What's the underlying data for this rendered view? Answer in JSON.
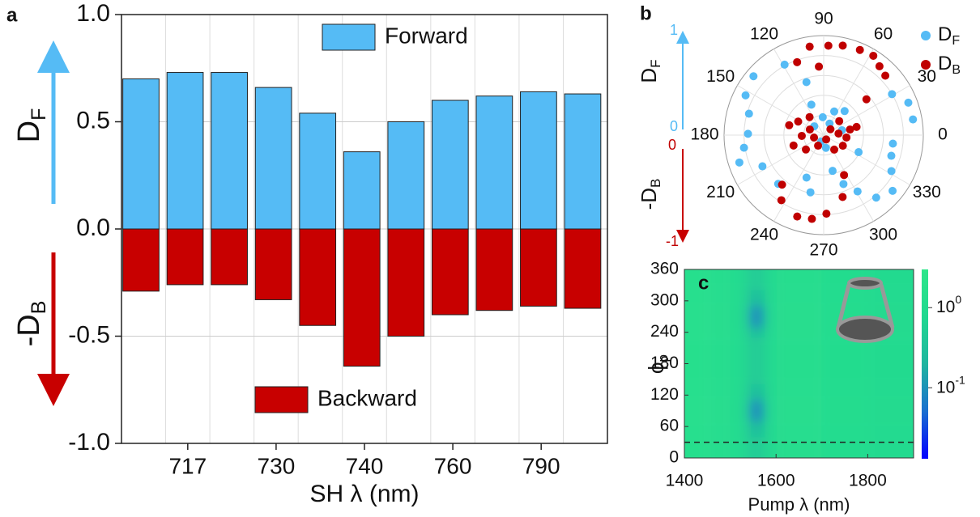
{
  "chart_data": [
    {
      "type": "bar",
      "panel": "a",
      "categories": [
        null,
        "717",
        null,
        "730",
        null,
        "740",
        null,
        "760",
        null,
        "790",
        null
      ],
      "series": [
        {
          "name": "Forward",
          "color": "#55bbf5",
          "values": [
            0.7,
            0.73,
            0.73,
            0.66,
            0.54,
            0.36,
            0.5,
            0.6,
            0.62,
            0.64,
            0.63
          ]
        },
        {
          "name": "Backward",
          "color": "#c80000",
          "values": [
            -0.29,
            -0.26,
            -0.26,
            -0.33,
            -0.45,
            -0.64,
            -0.5,
            -0.4,
            -0.38,
            -0.36,
            -0.37
          ]
        }
      ],
      "ylim": [
        -1,
        1
      ],
      "yticks": [
        {
          "value": 1,
          "label": "1.0"
        },
        {
          "value": 0.5,
          "label": "0.5"
        },
        {
          "value": 0,
          "label": "0.0"
        },
        {
          "value": -0.5,
          "label": "-0.5"
        },
        {
          "value": -1,
          "label": "-1.0"
        }
      ],
      "y_label_top": {
        "text": "D",
        "sub": "F"
      },
      "y_label_bottom": {
        "text": "-D",
        "sub": "B"
      },
      "x_label": "SH λ (nm)",
      "grid": true,
      "legend": "split"
    },
    {
      "type": "polar",
      "panel": "b",
      "series": [
        {
          "name": {
            "text": "D",
            "sub": "F"
          },
          "color": "#55bbf5",
          "x": [
            119,
            140,
            153,
            164,
            179,
            189,
            198,
            207,
            227,
            248,
            257,
            284,
            292,
            301,
            310,
            321,
            332,
            343,
            353,
            10,
            21,
            31,
            108,
            112,
            93,
            66,
            49,
            63,
            137,
            249,
            280,
            334,
            15
          ],
          "values": [
            0.81,
            0.92,
            0.88,
            0.78,
            0.76,
            0.81,
            0.89,
            0.69,
            0.67,
            0.46,
            0.59,
            0.37,
            0.53,
            0.66,
            0.82,
            0.89,
            0.77,
            0.71,
            0.7,
            0.91,
            0.91,
            0.8,
            0.56,
            0.33,
            0.18,
            0.26,
            0.32,
            0.13,
            0.13,
            0.07,
            0.13,
            0.39,
            0.19
          ]
        },
        {
          "name": {
            "text": "D",
            "sub": "B"
          },
          "color": "#c00000",
          "x": [
            87,
            78,
            67,
            58,
            51,
            44,
            40,
            99,
            110,
            94,
            230,
            237,
            252,
            262,
            272,
            287,
            297,
            152,
            164,
            158,
            194,
            242,
            41,
            6,
            354,
            12,
            331,
            306,
            219,
            199,
            128,
            300,
            14,
            182,
            42
          ],
          "values": [
            0.9,
            0.92,
            0.93,
            0.94,
            0.89,
            0.86,
            0.56,
            0.9,
            0.78,
            0.69,
            0.65,
            0.78,
            0.86,
            0.85,
            0.79,
            0.65,
            0.45,
            0.29,
            0.36,
            0.15,
            0.1,
            0.12,
            0.09,
            0.15,
            0.23,
            0.27,
            0.22,
            0.18,
            0.23,
            0.32,
            0.23,
            0.05,
            0.34,
            0.22,
            0.21
          ]
        }
      ],
      "xticks": [
        0,
        30,
        60,
        90,
        120,
        150,
        180,
        210,
        240,
        270,
        300,
        330
      ],
      "rlim": [
        0,
        1
      ],
      "rticks": [
        0.2,
        0.4,
        0.6,
        0.8,
        1
      ],
      "side_axis": {
        "top_label": {
          "text": "D",
          "sub": "F"
        },
        "bottom_label": {
          "text": "-D",
          "sub": "B"
        },
        "top_ticks": [
          1,
          0
        ],
        "bottom_ticks": [
          0,
          -1
        ],
        "top_color": "#55bbf5",
        "bottom_color": "#c00000"
      }
    },
    {
      "type": "heatmap",
      "panel": "c",
      "xbins": [
        1400,
        1450,
        1500,
        1530,
        1545,
        1560,
        1575,
        1600,
        1700,
        1800,
        1900
      ],
      "ybins": [
        0,
        40,
        70,
        90,
        110,
        140,
        230,
        250,
        270,
        290,
        320,
        360
      ],
      "values": [
        [
          1.5,
          1.3,
          1.0,
          0.6,
          0.45,
          0.5,
          0.8,
          1.2,
          1.1,
          0.9
        ],
        [
          1.5,
          1.3,
          1.0,
          0.5,
          0.25,
          0.3,
          0.75,
          1.2,
          1.1,
          0.9
        ],
        [
          1.5,
          1.3,
          0.95,
          0.4,
          0.08,
          0.12,
          0.7,
          1.2,
          1.1,
          0.9
        ],
        [
          1.5,
          1.3,
          0.95,
          0.4,
          0.08,
          0.12,
          0.7,
          1.2,
          1.1,
          0.9
        ],
        [
          1.5,
          1.3,
          1.0,
          0.5,
          0.25,
          0.3,
          0.75,
          1.2,
          1.1,
          0.9
        ],
        [
          1.5,
          1.3,
          1.0,
          0.6,
          0.45,
          0.5,
          0.8,
          1.2,
          1.1,
          0.9
        ],
        [
          1.5,
          1.3,
          1.0,
          0.5,
          0.25,
          0.3,
          0.75,
          1.2,
          1.1,
          0.9
        ],
        [
          1.5,
          1.3,
          0.95,
          0.4,
          0.08,
          0.12,
          0.7,
          1.2,
          1.1,
          0.9
        ],
        [
          1.5,
          1.3,
          0.95,
          0.4,
          0.08,
          0.12,
          0.7,
          1.2,
          1.1,
          0.9
        ],
        [
          1.5,
          1.3,
          1.0,
          0.5,
          0.25,
          0.3,
          0.75,
          1.2,
          1.1,
          0.9
        ],
        [
          1.5,
          1.3,
          1.0,
          0.6,
          0.45,
          0.5,
          0.8,
          1.2,
          1.1,
          0.9
        ]
      ],
      "xlim": [
        1400,
        1900
      ],
      "xticks": [
        1400,
        1600,
        1800
      ],
      "ylim": [
        0,
        360
      ],
      "yticks": [
        0,
        60,
        120,
        180,
        240,
        300,
        360
      ],
      "x_label": "Pump λ (nm)",
      "y_label": {
        "text": "ϕ",
        "sub": "p"
      },
      "zlim": [
        0.013,
        3
      ],
      "log_scale": true,
      "zticks": [
        {
          "value": 1,
          "label": "10",
          "exponent": "0"
        },
        {
          "value": 0.1,
          "label": "10",
          "exponent": "-1"
        }
      ],
      "colormap": [
        "#0000ff",
        "#1a6fd0",
        "#1fb5a0",
        "#20d890",
        "#2ee68a"
      ],
      "hline": 30
    }
  ]
}
